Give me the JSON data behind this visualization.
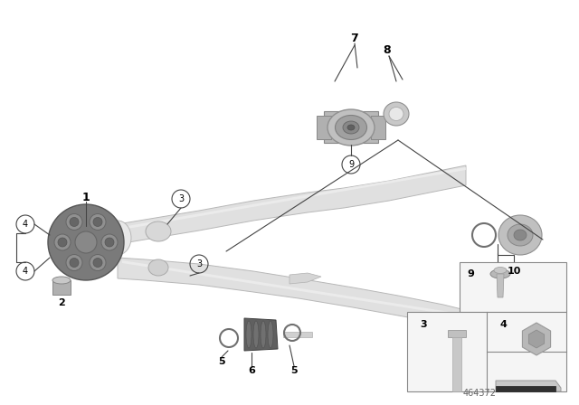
{
  "bg_color": "#ffffff",
  "fig_width": 6.4,
  "fig_height": 4.48,
  "dpi": 100,
  "line_color": "#444444",
  "text_color": "#000000",
  "footer_number": "464372",
  "footer_color": "#666666",
  "shaft_color": "#d8d8d8",
  "shaft_edge": "#b0b0b0",
  "part_color": "#a0a0a0",
  "part_edge": "#707070"
}
